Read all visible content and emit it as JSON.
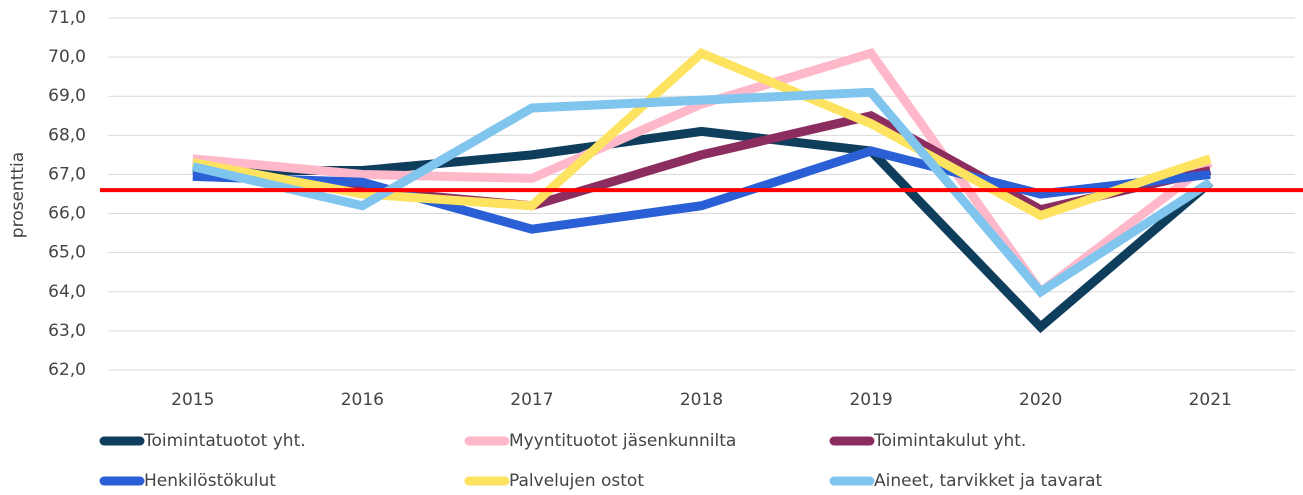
{
  "chart_data": {
    "type": "line",
    "y_axis_label": "prosenttia",
    "categories": [
      "2015",
      "2016",
      "2017",
      "2018",
      "2019",
      "2020",
      "2021"
    ],
    "ylim": [
      62,
      71
    ],
    "yticks": [
      {
        "value": 62,
        "label": "62,0"
      },
      {
        "value": 63,
        "label": "63,0"
      },
      {
        "value": 64,
        "label": "64,0"
      },
      {
        "value": 65,
        "label": "65,0"
      },
      {
        "value": 66,
        "label": "66,0"
      },
      {
        "value": 67,
        "label": "67,0"
      },
      {
        "value": 68,
        "label": "68,0"
      },
      {
        "value": 69,
        "label": "69,0"
      },
      {
        "value": 70,
        "label": "70,0"
      },
      {
        "value": 71,
        "label": "71,0"
      }
    ],
    "grid": true,
    "reference_line": {
      "value": 66.6,
      "color": "#ff0000"
    },
    "series": [
      {
        "name": "Toimintatuotot yht.",
        "color": "#0f3d5c",
        "values": [
          67.1,
          67.1,
          67.5,
          68.1,
          67.6,
          63.1,
          66.8
        ]
      },
      {
        "name": "Myyntituotot jäsenkunnilta",
        "color": "#ffb8c9",
        "values": [
          67.4,
          67.0,
          66.9,
          68.8,
          70.1,
          64.0,
          67.3
        ]
      },
      {
        "name": "Toimintakulut yht.",
        "color": "#8c2d5f",
        "values": [
          67.2,
          66.6,
          66.2,
          67.5,
          68.5,
          66.1,
          67.1
        ]
      },
      {
        "name": "Henkilöstökulut",
        "color": "#2a5fd6",
        "values": [
          66.95,
          66.8,
          65.6,
          66.2,
          67.6,
          66.5,
          67.0
        ]
      },
      {
        "name": "Palvelujen ostot",
        "color": "#fde35f",
        "values": [
          67.3,
          66.5,
          66.2,
          70.1,
          68.3,
          65.95,
          67.4
        ]
      },
      {
        "name": "Aineet, tarvikket ja tavarat",
        "color": "#80c5ee",
        "values": [
          67.2,
          66.2,
          68.7,
          68.9,
          69.1,
          64.0,
          66.8
        ]
      }
    ],
    "legend": "bottom"
  }
}
